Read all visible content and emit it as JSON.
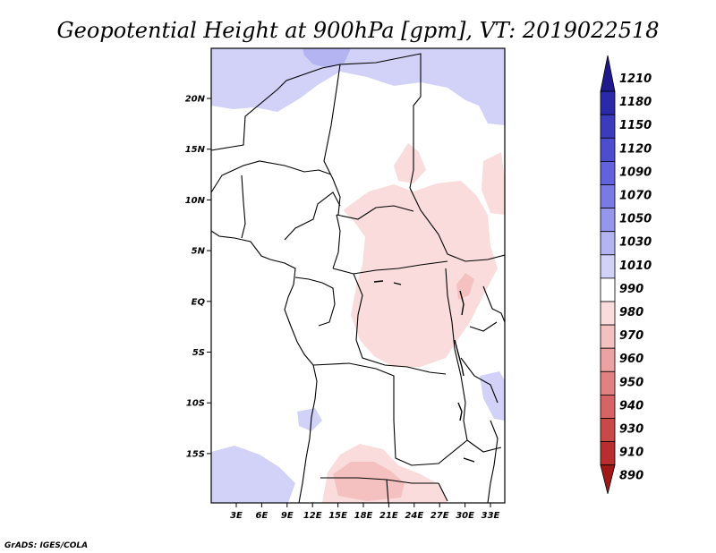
{
  "title": "Geopotential Height at 900hPa [gpm], VT: 2019022518",
  "footer": "GrADS: IGES/COLA",
  "chart_data": {
    "type": "map",
    "variable": "Geopotential Height",
    "level": "900hPa",
    "units": "gpm",
    "valid_time": "2019022518",
    "lon_ticks": [
      "3E",
      "6E",
      "9E",
      "12E",
      "15E",
      "18E",
      "21E",
      "24E",
      "27E",
      "30E",
      "33E"
    ],
    "lat_ticks": [
      "20N",
      "15N",
      "10N",
      "5N",
      "EQ",
      "5S",
      "10S",
      "15S"
    ],
    "colorbar": {
      "levels": [
        "1210",
        "1180",
        "1150",
        "1120",
        "1090",
        "1070",
        "1050",
        "1030",
        "1010",
        "990",
        "980",
        "970",
        "960",
        "950",
        "940",
        "930",
        "910",
        "890"
      ],
      "colors": [
        "#1e1a8c",
        "#2a2aa8",
        "#3b3bbd",
        "#4d4dd0",
        "#6262dc",
        "#7a7ae4",
        "#9696ec",
        "#b4b4f2",
        "#d2d2f8",
        "#ffffff",
        "#fadcdc",
        "#f4c0c0",
        "#eca2a2",
        "#e08282",
        "#d66464",
        "#c94848",
        "#b82e2e",
        "#a01818"
      ]
    }
  }
}
